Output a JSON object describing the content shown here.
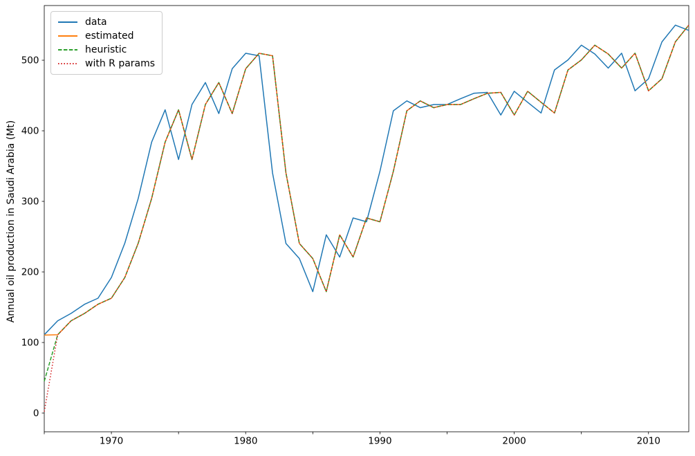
{
  "figure": {
    "background_color": "#ffffff",
    "axes_edge_color": "#000000",
    "text_color": "#000000"
  },
  "chart_data": {
    "type": "line",
    "title": "",
    "xlabel": "",
    "ylabel": "Annual oil production in Saudi Arabia (Mt)",
    "grid": false,
    "legend_position": "upper-left",
    "xlim": [
      1965,
      2013
    ],
    "ylim": [
      -26.5,
      577.5
    ],
    "x_ticks": [
      1965,
      1970,
      1975,
      1980,
      1985,
      1990,
      1995,
      2000,
      2005,
      2010
    ],
    "x_tick_labels": [
      1970,
      1980,
      1990,
      2000,
      2010
    ],
    "y_ticks": [
      0,
      100,
      200,
      300,
      400,
      500
    ],
    "x": [
      1965,
      1966,
      1967,
      1968,
      1969,
      1970,
      1971,
      1972,
      1973,
      1974,
      1975,
      1976,
      1977,
      1978,
      1979,
      1980,
      1981,
      1982,
      1983,
      1984,
      1985,
      1986,
      1987,
      1988,
      1989,
      1990,
      1991,
      1992,
      1993,
      1994,
      1995,
      1996,
      1997,
      1998,
      1999,
      2000,
      2001,
      2002,
      2003,
      2004,
      2005,
      2006,
      2007,
      2008,
      2009,
      2010,
      2011,
      2012,
      2013
    ],
    "series": [
      {
        "name": "data",
        "color": "#1f77b4",
        "style": "solid",
        "values": [
          111.0,
          130.8,
          141.3,
          154.2,
          162.7,
          192.2,
          240.8,
          304.2,
          384.0,
          429.7,
          359.3,
          437.3,
          468.4,
          424.4,
          488.0,
          509.8,
          506.3,
          340.2,
          240.3,
          219.0,
          172.1,
          252.6,
          221.1,
          276.5,
          271.1,
          342.6,
          428.4,
          442.4,
          432.8,
          437.2,
          437.2,
          445.4,
          453.2,
          454.4,
          422.4,
          456.0,
          440.4,
          425.2,
          486.2,
          500.4,
          521.3,
          508.9,
          488.9,
          509.9,
          456.7,
          473.8,
          526.0,
          549.8,
          542.3
        ]
      },
      {
        "name": "estimated",
        "color": "#ff7f0e",
        "style": "solid",
        "values": [
          110.5,
          111.0,
          130.8,
          141.3,
          154.2,
          162.7,
          192.2,
          240.8,
          304.2,
          384.0,
          429.7,
          359.3,
          437.3,
          468.4,
          424.4,
          488.0,
          509.8,
          506.3,
          340.2,
          240.3,
          219.0,
          172.1,
          252.6,
          221.1,
          276.5,
          271.1,
          342.6,
          428.4,
          442.4,
          432.8,
          437.2,
          437.2,
          445.4,
          453.2,
          454.4,
          422.4,
          456.0,
          440.4,
          425.2,
          486.2,
          500.4,
          521.3,
          508.9,
          488.9,
          509.9,
          456.7,
          473.8,
          526.0,
          549.8
        ]
      },
      {
        "name": "heuristic",
        "color": "#2ca02c",
        "style": "dashed",
        "values": [
          45.0,
          111.0,
          130.8,
          141.3,
          154.2,
          162.7,
          192.2,
          240.8,
          304.2,
          384.0,
          429.7,
          359.3,
          437.3,
          468.4,
          424.4,
          488.0,
          509.8,
          506.3,
          340.2,
          240.3,
          219.0,
          172.1,
          252.6,
          221.1,
          276.5,
          271.1,
          342.6,
          428.4,
          442.4,
          432.8,
          437.2,
          437.2,
          445.4,
          453.2,
          454.4,
          422.4,
          456.0,
          440.4,
          425.2,
          486.2,
          500.4,
          521.3,
          508.9,
          488.9,
          509.9,
          456.7,
          473.8,
          526.0,
          549.8
        ]
      },
      {
        "name": "with R params",
        "color": "#d62728",
        "style": "dotted",
        "values": [
          2.0,
          111.0,
          130.8,
          141.3,
          154.2,
          162.7,
          192.2,
          240.8,
          304.2,
          384.0,
          429.7,
          359.3,
          437.3,
          468.4,
          424.4,
          488.0,
          509.8,
          506.3,
          340.2,
          240.3,
          219.0,
          172.1,
          252.6,
          221.1,
          276.5,
          271.1,
          342.6,
          428.4,
          442.4,
          432.8,
          437.2,
          437.2,
          445.4,
          453.2,
          454.4,
          422.4,
          456.0,
          440.4,
          425.2,
          486.2,
          500.4,
          521.3,
          508.9,
          488.9,
          509.9,
          456.7,
          473.8,
          526.0,
          549.8
        ]
      }
    ]
  }
}
